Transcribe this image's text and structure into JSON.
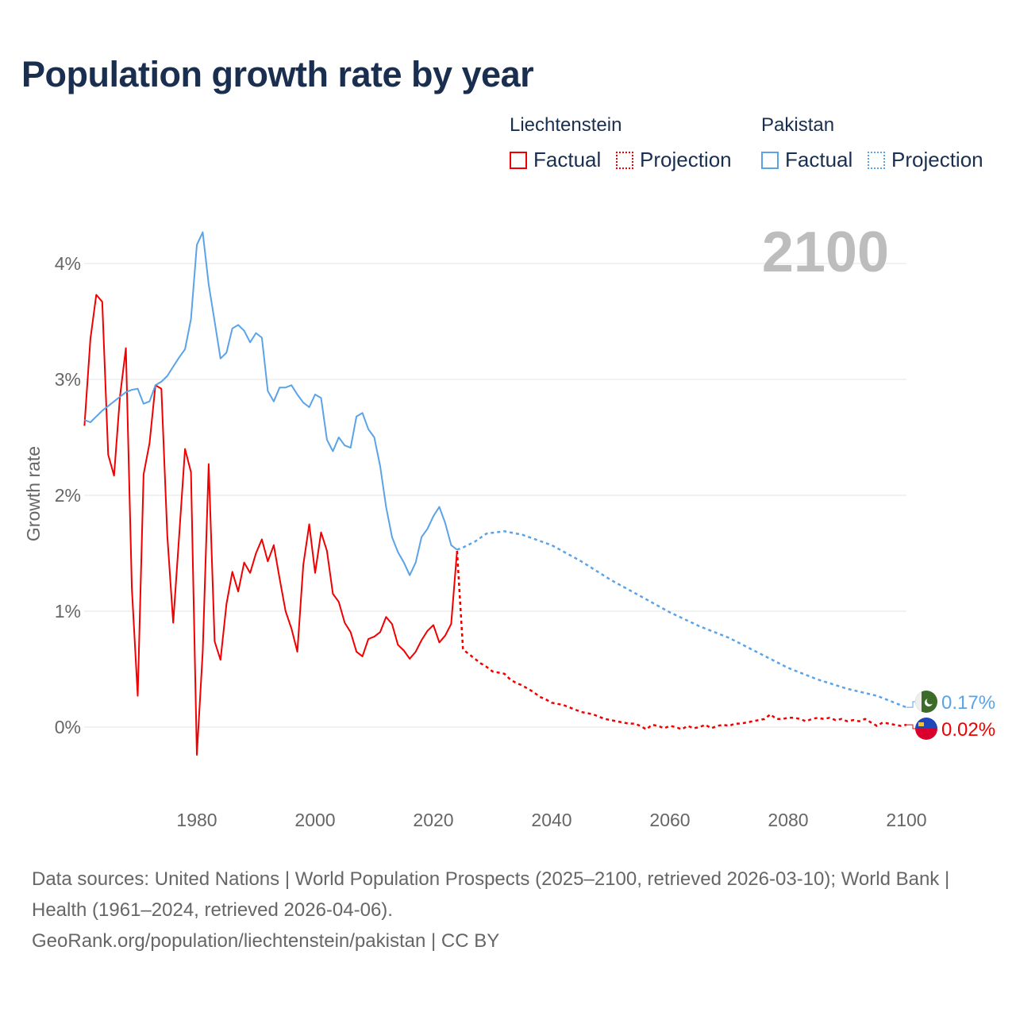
{
  "title": "Population growth rate by year",
  "legend": {
    "groups": [
      {
        "name": "Liechtenstein",
        "color": "#f00000",
        "factual": "Factual",
        "projection": "Projection"
      },
      {
        "name": "Pakistan",
        "color": "#5ba3e8",
        "factual": "Factual",
        "projection": "Projection"
      }
    ]
  },
  "footer": {
    "sources": "Data sources: United Nations | World Population Prospects (2025–2100, retrieved 2026-03-10); World Bank | Health (1961–2024, retrieved 2026-04-06).",
    "link": "GeoRank.org/population/liechtenstein/pakistan | CC BY"
  },
  "chart_data": {
    "type": "line",
    "title": "Population growth rate by year",
    "ylabel": "Growth rate",
    "xlabel": "",
    "year_label": "2100",
    "xlim": [
      1961,
      2100
    ],
    "ylim": [
      -0.5,
      4.3
    ],
    "x_ticks": [
      1980,
      2000,
      2020,
      2040,
      2060,
      2080,
      2100
    ],
    "y_ticks": [
      0,
      1,
      2,
      3,
      4
    ],
    "y_tick_labels": [
      "0%",
      "1%",
      "2%",
      "3%",
      "4%"
    ],
    "grid": true,
    "series": [
      {
        "name": "Liechtenstein",
        "color": "#f00000",
        "end_label": "0.02%",
        "factual_start": 1961,
        "factual": [
          2.6,
          3.35,
          3.73,
          3.67,
          2.35,
          2.17,
          2.85,
          3.27,
          1.2,
          0.27,
          2.18,
          2.45,
          2.95,
          2.92,
          1.65,
          0.9,
          1.65,
          2.4,
          2.2,
          -0.24,
          0.65,
          2.27,
          0.74,
          0.58,
          1.06,
          1.34,
          1.17,
          1.42,
          1.33,
          1.5,
          1.62,
          1.43,
          1.57,
          1.28,
          1.0,
          0.85,
          0.65,
          1.4,
          1.75,
          1.33,
          1.68,
          1.52,
          1.15,
          1.08,
          0.9,
          0.82,
          0.65,
          0.61,
          0.76,
          0.78,
          0.82,
          0.95,
          0.89,
          0.71,
          0.66,
          0.59,
          0.65,
          0.75,
          0.83,
          0.88,
          0.73,
          0.79,
          0.89,
          1.52
        ],
        "projection_start": 2025,
        "projection": [
          0.67,
          0.63,
          0.59,
          0.55,
          0.52,
          0.48,
          0.47,
          0.46,
          0.41,
          0.38,
          0.36,
          0.33,
          0.3,
          0.26,
          0.24,
          0.21,
          0.2,
          0.19,
          0.17,
          0.15,
          0.13,
          0.12,
          0.11,
          0.09,
          0.07,
          0.06,
          0.05,
          0.04,
          0.03,
          0.03,
          0.01,
          -0.02,
          0.02,
          0.01,
          -0.01,
          0.01,
          0.0,
          -0.02,
          0.01,
          -0.01,
          0.0,
          0.02,
          -0.01,
          0.01,
          0.02,
          0.01,
          0.03,
          0.03,
          0.04,
          0.05,
          0.06,
          0.07,
          0.11,
          0.07,
          0.07,
          0.08,
          0.08,
          0.07,
          0.05,
          0.07,
          0.08,
          0.07,
          0.08,
          0.06,
          0.07,
          0.05,
          0.06,
          0.05,
          0.07,
          0.04,
          0.01,
          0.04,
          0.03,
          0.02,
          0.01,
          0.02
        ]
      },
      {
        "name": "Pakistan",
        "color": "#5ba3e8",
        "end_label": "0.17%",
        "factual_start": 1961,
        "factual": [
          2.65,
          2.63,
          2.68,
          2.73,
          2.77,
          2.81,
          2.85,
          2.89,
          2.91,
          2.92,
          2.79,
          2.81,
          2.95,
          2.98,
          3.03,
          3.11,
          3.19,
          3.26,
          3.52,
          4.16,
          4.27,
          3.82,
          3.5,
          3.18,
          3.23,
          3.44,
          3.47,
          3.42,
          3.32,
          3.4,
          3.36,
          2.9,
          2.81,
          2.93,
          2.93,
          2.95,
          2.87,
          2.8,
          2.76,
          2.87,
          2.84,
          2.48,
          2.38,
          2.5,
          2.43,
          2.41,
          2.68,
          2.71,
          2.57,
          2.5,
          2.25,
          1.9,
          1.64,
          1.51,
          1.42,
          1.31,
          1.42,
          1.64,
          1.71,
          1.82,
          1.9,
          1.76,
          1.57,
          1.53
        ],
        "projection_points": [
          [
            2025,
            1.55
          ],
          [
            2027,
            1.6
          ],
          [
            2029,
            1.67
          ],
          [
            2032,
            1.69
          ],
          [
            2035,
            1.66
          ],
          [
            2040,
            1.57
          ],
          [
            2045,
            1.43
          ],
          [
            2050,
            1.27
          ],
          [
            2055,
            1.13
          ],
          [
            2060,
            0.99
          ],
          [
            2065,
            0.87
          ],
          [
            2070,
            0.77
          ],
          [
            2075,
            0.64
          ],
          [
            2080,
            0.51
          ],
          [
            2085,
            0.41
          ],
          [
            2090,
            0.33
          ],
          [
            2095,
            0.27
          ],
          [
            2100,
            0.17
          ]
        ]
      }
    ]
  }
}
